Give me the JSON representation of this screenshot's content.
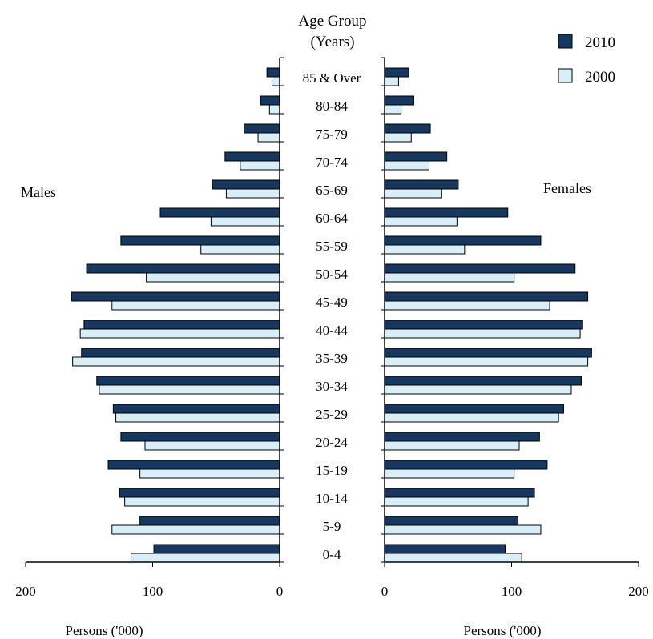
{
  "chart_data": {
    "type": "bar",
    "orientation": "horizontal-population-pyramid",
    "age_header": {
      "line1": "Age Group",
      "line2": "(Years)"
    },
    "categories": [
      "85 & Over",
      "80-84",
      "75-79",
      "70-74",
      "65-69",
      "60-64",
      "55-59",
      "50-54",
      "45-49",
      "40-44",
      "35-39",
      "30-34",
      "25-29",
      "20-24",
      "15-19",
      "10-14",
      "5-9",
      "0-4"
    ],
    "left_panel": {
      "label": "Males",
      "xlabel": "Persons ('000)",
      "xlim": [
        0,
        200
      ],
      "ticks": [
        "200",
        "100",
        "0"
      ]
    },
    "right_panel": {
      "label": "Females",
      "xlabel": "Persons ('000)",
      "xlim": [
        0,
        200
      ],
      "ticks": [
        "0",
        "100",
        "200"
      ]
    },
    "series": [
      {
        "name": "2010",
        "color": "#17375e",
        "males": [
          10,
          15,
          28,
          43,
          53,
          94,
          125,
          152,
          164,
          154,
          156,
          144,
          131,
          125,
          135,
          126,
          110,
          99
        ],
        "females": [
          19,
          23,
          36,
          49,
          58,
          97,
          123,
          150,
          160,
          156,
          163,
          155,
          141,
          122,
          128,
          118,
          105,
          95
        ]
      },
      {
        "name": "2000",
        "color": "#daeef8",
        "males": [
          6,
          8,
          17,
          31,
          42,
          54,
          62,
          105,
          132,
          157,
          163,
          142,
          129,
          106,
          110,
          122,
          132,
          117
        ],
        "females": [
          11,
          13,
          21,
          35,
          45,
          57,
          63,
          102,
          130,
          154,
          160,
          147,
          137,
          106,
          102,
          113,
          123,
          108
        ]
      }
    ],
    "legend": {
      "placement": "top-right",
      "entries": [
        "2010",
        "2000"
      ]
    },
    "grid": false
  }
}
